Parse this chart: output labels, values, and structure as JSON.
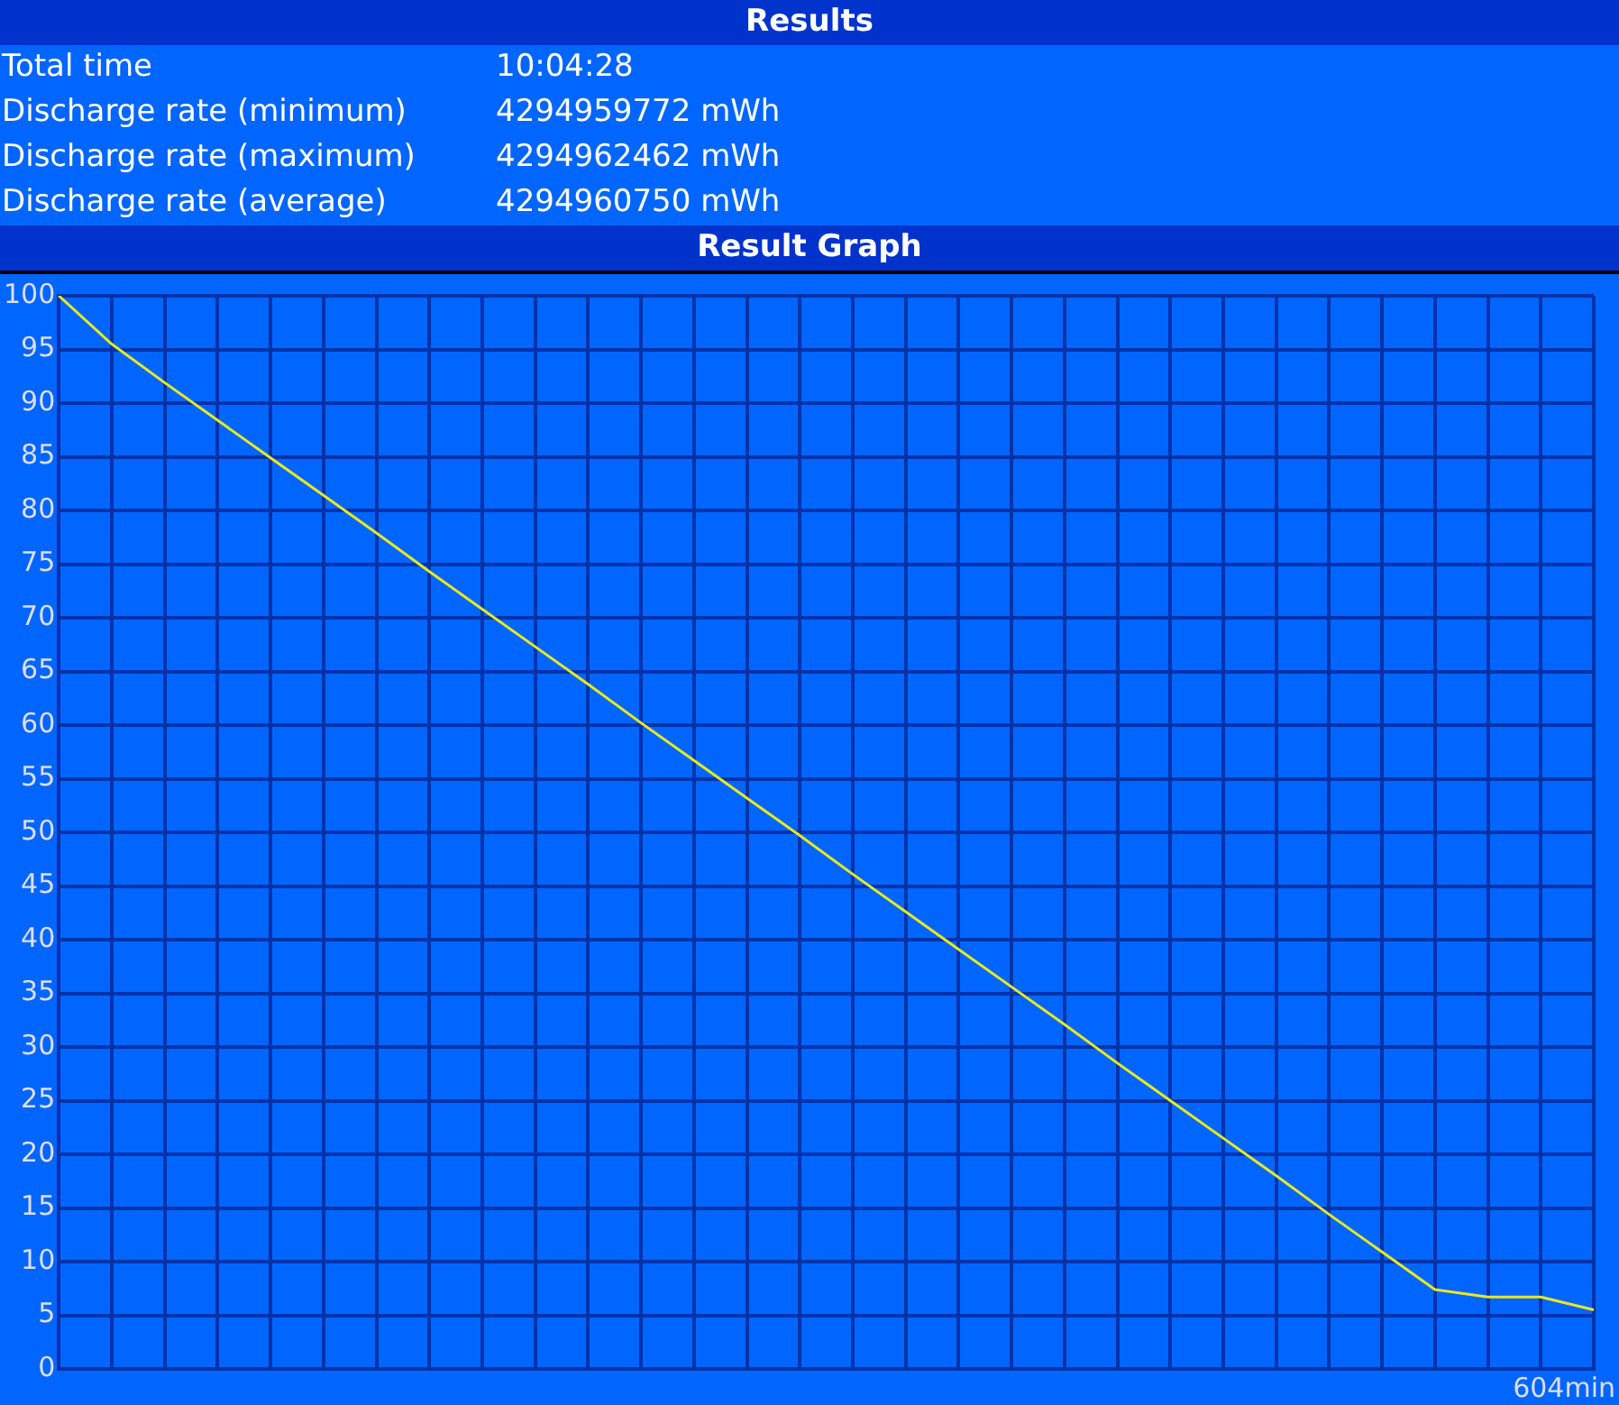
{
  "chart_data": {
    "type": "line",
    "title": "Result Graph",
    "annotations": [
      "Results",
      "Total time",
      "10:04:28",
      "Discharge rate (minimum)",
      "4294959772 mWh",
      "Discharge rate (maximum)",
      "4294962462 mWh",
      "Discharge rate (average)",
      "4294960750 mWh",
      "604min"
    ],
    "categories": [
      null,
      null,
      null,
      null,
      null,
      null,
      null,
      null,
      null,
      null,
      null,
      null,
      null,
      null,
      null,
      null,
      null,
      null,
      null,
      null,
      null,
      null,
      null,
      null,
      null,
      null,
      null,
      null,
      null,
      null
    ],
    "series": [
      {
        "color": "#e8e820",
        "values": [
          100,
          95.5,
          91.9,
          88.4,
          84.9,
          81.4,
          77.9,
          74.3,
          70.8,
          67.3,
          63.8,
          60.2,
          56.7,
          53.2,
          49.7,
          46.1,
          42.6,
          39.1,
          35.6,
          32.1,
          28.5,
          25.0,
          21.5,
          18.0,
          14.4,
          10.9,
          7.4,
          6.7,
          6.7,
          5.5
        ]
      }
    ],
    "ylim": [
      0,
      100
    ],
    "yticks": [
      0,
      5,
      10,
      15,
      20,
      25,
      30,
      35,
      40,
      45,
      50,
      55,
      60,
      65,
      70,
      75,
      80,
      85,
      90,
      95,
      100
    ],
    "grid": true,
    "legend": false,
    "marker": "none",
    "line_style": "solid"
  }
}
